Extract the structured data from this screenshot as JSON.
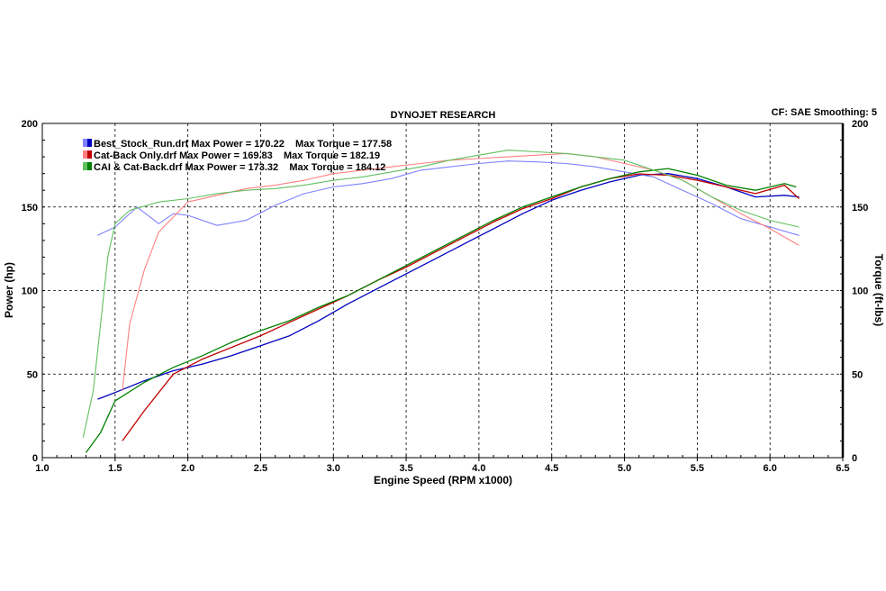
{
  "header": {
    "title": "DYNOJET RESEARCH",
    "cf": "CF: SAE  Smoothing: 5"
  },
  "legend": [
    {
      "text": "Best_Stock_Run.drf Max Power = 170.22    Max Torque = 177.58",
      "color_light": "#8080ff",
      "color_dark": "#0000c0"
    },
    {
      "text": "Cat-Back Only.drf Max Power = 169.83    Max Torque = 182.19",
      "color_light": "#ff8080",
      "color_dark": "#c00000"
    },
    {
      "text": "CAI & Cat-Back.drf Max Power = 173.32    Max Torque = 184.12",
      "color_light": "#60c060",
      "color_dark": "#008000"
    }
  ],
  "chart_data": {
    "type": "line",
    "title": "DYNOJET RESEARCH",
    "xlabel": "Engine Speed (RPM x1000)",
    "ylabel": "Power (hp)",
    "y2label": "Torque (ft-lbs)",
    "xlim": [
      1.0,
      6.5
    ],
    "ylim": [
      0,
      200
    ],
    "y2lim": [
      0,
      200
    ],
    "xticks": [
      "1.0",
      "1.5",
      "2.0",
      "2.5",
      "3.0",
      "3.5",
      "4.0",
      "4.5",
      "5.0",
      "5.5",
      "6.0",
      "6.5"
    ],
    "yticks": [
      "0",
      "50",
      "100",
      "150",
      "200"
    ],
    "grid": true,
    "legend_position": "top-left",
    "series": [
      {
        "name": "Best_Stock_Run.drf",
        "kind": "power",
        "color": "#0000c0",
        "x": [
          1.38,
          1.5,
          1.7,
          1.9,
          2.1,
          2.3,
          2.5,
          2.7,
          2.9,
          3.1,
          3.3,
          3.5,
          3.7,
          3.9,
          4.1,
          4.3,
          4.5,
          4.7,
          4.9,
          5.1,
          5.3,
          5.5,
          5.7,
          5.9,
          6.1,
          6.2
        ],
        "y": [
          35,
          39,
          46,
          52,
          56,
          61,
          67,
          73,
          82,
          92,
          101,
          110,
          119,
          128,
          137,
          146,
          154,
          160,
          165,
          169,
          170,
          167,
          162,
          156,
          157,
          156
        ]
      },
      {
        "name": "Best_Stock_Run.drf",
        "kind": "torque",
        "color": "#8080ff",
        "x": [
          1.38,
          1.5,
          1.65,
          1.8,
          1.9,
          2.0,
          2.2,
          2.4,
          2.6,
          2.8,
          3.0,
          3.2,
          3.4,
          3.6,
          3.8,
          4.0,
          4.2,
          4.4,
          4.6,
          4.8,
          5.0,
          5.2,
          5.4,
          5.6,
          5.8,
          6.0,
          6.2
        ],
        "y": [
          133,
          138,
          150,
          140,
          146,
          145,
          139,
          142,
          151,
          158,
          162,
          164,
          167,
          172,
          174,
          176,
          177.5,
          177,
          176,
          174,
          171,
          168,
          160,
          152,
          143,
          138,
          133
        ]
      },
      {
        "name": "Cat-Back Only.drf",
        "kind": "power",
        "color": "#c00000",
        "x": [
          1.55,
          1.7,
          1.9,
          2.1,
          2.3,
          2.5,
          2.7,
          2.9,
          3.1,
          3.3,
          3.5,
          3.7,
          3.9,
          4.1,
          4.3,
          4.5,
          4.7,
          4.9,
          5.1,
          5.3,
          5.5,
          5.7,
          5.9,
          6.1,
          6.2
        ],
        "y": [
          10,
          28,
          50,
          59,
          66,
          73,
          81,
          89,
          97,
          106,
          114,
          123,
          132,
          141,
          149,
          155,
          162,
          167,
          169.8,
          169,
          166,
          162,
          158,
          163,
          155
        ]
      },
      {
        "name": "Cat-Back Only.drf",
        "kind": "torque",
        "color": "#ff8080",
        "x": [
          1.55,
          1.6,
          1.7,
          1.8,
          2.0,
          2.2,
          2.4,
          2.6,
          2.8,
          3.0,
          3.2,
          3.4,
          3.6,
          3.8,
          4.0,
          4.2,
          4.4,
          4.6,
          4.8,
          5.0,
          5.2,
          5.4,
          5.6,
          5.8,
          6.0,
          6.2
        ],
        "y": [
          40,
          80,
          112,
          135,
          153,
          157,
          161,
          163,
          166,
          170,
          172,
          174,
          176,
          178,
          179,
          180,
          181,
          182,
          180,
          176,
          172,
          166,
          156,
          146,
          137,
          127
        ]
      },
      {
        "name": "CAI & Cat-Back.drf",
        "kind": "power",
        "color": "#008000",
        "x": [
          1.3,
          1.4,
          1.5,
          1.7,
          1.9,
          2.1,
          2.3,
          2.5,
          2.7,
          2.9,
          3.1,
          3.3,
          3.5,
          3.7,
          3.9,
          4.1,
          4.3,
          4.5,
          4.7,
          4.9,
          5.1,
          5.3,
          5.5,
          5.7,
          5.9,
          6.1,
          6.18
        ],
        "y": [
          3,
          15,
          34,
          45,
          54,
          61,
          69,
          76,
          82,
          90,
          97,
          106,
          115,
          124,
          133,
          142,
          150,
          156,
          162,
          167,
          171,
          173,
          169,
          163,
          160,
          164,
          162
        ]
      },
      {
        "name": "CAI & Cat-Back.drf",
        "kind": "torque",
        "color": "#60c060",
        "x": [
          1.28,
          1.35,
          1.4,
          1.45,
          1.5,
          1.6,
          1.8,
          2.0,
          2.2,
          2.4,
          2.6,
          2.8,
          3.0,
          3.2,
          3.4,
          3.6,
          3.8,
          4.0,
          4.2,
          4.4,
          4.6,
          4.8,
          5.0,
          5.2,
          5.4,
          5.6,
          5.8,
          6.0,
          6.2
        ],
        "y": [
          12,
          40,
          80,
          120,
          140,
          148,
          153,
          155,
          158,
          160,
          161,
          163,
          166,
          168,
          171,
          174,
          178,
          181,
          184,
          183,
          182,
          180,
          178,
          172,
          166,
          156,
          148,
          142,
          138
        ]
      }
    ]
  }
}
